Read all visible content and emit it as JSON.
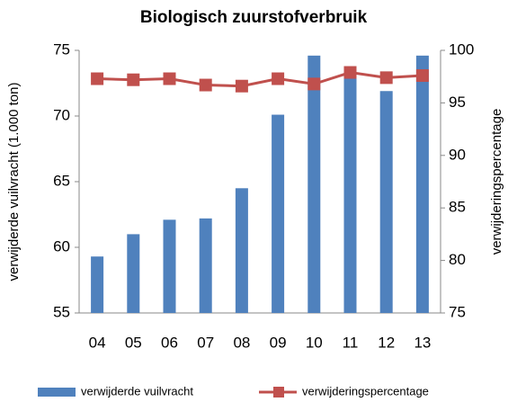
{
  "chart_data": {
    "type": "bar",
    "title": "Biologisch zuurstofverbruik",
    "ylabel": "verwijderde vuilvracht (1.000 ton)",
    "y2label": "verwijderingspercentage",
    "categories": [
      "04",
      "05",
      "06",
      "07",
      "08",
      "09",
      "10",
      "11",
      "12",
      "13"
    ],
    "series": [
      {
        "name": "verwijderde vuilvracht",
        "color": "#4f81bd",
        "values": [
          59.3,
          61.0,
          62.1,
          62.2,
          64.5,
          70.1,
          74.6,
          73.0,
          71.9,
          74.6
        ]
      },
      {
        "name": "verwijderingspercentage",
        "color": "#c0504d",
        "type": "line",
        "axis": "y2",
        "values": [
          97.3,
          97.2,
          97.3,
          96.7,
          96.6,
          97.3,
          96.8,
          97.9,
          97.4,
          97.6
        ]
      }
    ],
    "ylim": [
      55,
      75
    ],
    "yticks": [
      55,
      60,
      65,
      70,
      75
    ],
    "y2lim": [
      75,
      100
    ],
    "y2ticks": [
      75,
      80,
      85,
      90,
      95,
      100
    ],
    "grid": false,
    "legend": "bottom"
  }
}
